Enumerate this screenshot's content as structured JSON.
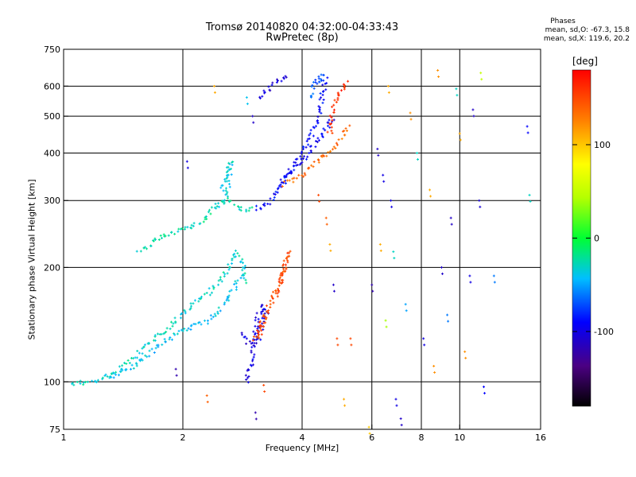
{
  "header": {
    "title_line1": "Tromsø 20140820 04:32:00-04:33:43",
    "title_line2": "RwPretec (8p)",
    "phases_title": "Phases",
    "phases_o": "mean, sd,O: -67.3, 15.8",
    "phases_x": "mean, sd,X: 119.6, 20.2"
  },
  "chart_data": {
    "type": "scatter",
    "xlabel": "Frequency [MHz]",
    "ylabel": "Stationary phase Virtual Height [km]",
    "xscale": "log",
    "yscale": "log",
    "xlim": [
      1,
      16
    ],
    "ylim": [
      75,
      750
    ],
    "xticks": [
      1,
      2,
      4,
      6,
      8,
      10,
      16
    ],
    "xtick_labels": [
      "1",
      "2",
      "4",
      "6",
      "8",
      "10",
      "16"
    ],
    "yticks": [
      75,
      100,
      200,
      300,
      400,
      500,
      600,
      750
    ],
    "ytick_labels": [
      "75",
      "100",
      "200",
      "300",
      "400",
      "500",
      "600",
      "750"
    ],
    "grid_x": [
      2,
      4,
      6,
      8,
      10
    ],
    "grid_y": [
      100,
      200,
      300,
      400,
      500,
      600
    ],
    "colorbar": {
      "unit": "[deg]",
      "range": [
        -180,
        180
      ],
      "ticks": [
        100,
        0,
        -100
      ],
      "tick_labels": [
        "100",
        "0",
        "-100"
      ]
    },
    "traces": [
      {
        "color_value": -30,
        "points": [
          [
            1.05,
            99
          ],
          [
            1.2,
            100
          ],
          [
            1.35,
            106
          ],
          [
            1.5,
            115
          ],
          [
            1.65,
            126
          ],
          [
            1.8,
            136
          ],
          [
            1.95,
            148
          ],
          [
            2.1,
            158
          ],
          [
            2.3,
            170
          ],
          [
            2.5,
            186
          ],
          [
            2.65,
            205
          ],
          [
            2.75,
            220
          ],
          [
            2.85,
            200
          ],
          [
            2.9,
            180
          ]
        ]
      },
      {
        "color_value": -40,
        "points": [
          [
            1.3,
            102
          ],
          [
            1.5,
            110
          ],
          [
            1.65,
            118
          ],
          [
            1.8,
            128
          ],
          [
            1.95,
            135
          ],
          [
            2.1,
            140
          ],
          [
            2.25,
            142
          ],
          [
            2.4,
            150
          ],
          [
            2.55,
            162
          ],
          [
            2.7,
            175
          ],
          [
            2.8,
            190
          ]
        ]
      },
      {
        "color_value": -25,
        "points": [
          [
            1.55,
            220
          ],
          [
            1.75,
            240
          ],
          [
            1.95,
            250
          ],
          [
            2.1,
            255
          ],
          [
            2.25,
            265
          ],
          [
            2.35,
            280
          ],
          [
            2.45,
            295
          ],
          [
            2.6,
            305
          ],
          [
            2.75,
            290
          ],
          [
            2.9,
            280
          ],
          [
            3.0,
            285
          ]
        ]
      },
      {
        "color_value": -35,
        "points": [
          [
            2.5,
            290
          ],
          [
            2.55,
            310
          ],
          [
            2.6,
            330
          ],
          [
            2.62,
            350
          ],
          [
            2.65,
            380
          ],
          [
            2.6,
            360
          ],
          [
            2.55,
            340
          ],
          [
            2.5,
            320
          ]
        ]
      },
      {
        "color_value": -100,
        "points": [
          [
            2.9,
            100
          ],
          [
            3.0,
            115
          ],
          [
            3.05,
            135
          ],
          [
            3.1,
            150
          ],
          [
            3.2,
            160
          ],
          [
            3.25,
            150
          ],
          [
            3.1,
            130
          ],
          [
            2.95,
            125
          ],
          [
            2.8,
            135
          ]
        ]
      },
      {
        "color_value": -90,
        "points": [
          [
            3.05,
            285
          ],
          [
            3.2,
            290
          ],
          [
            3.35,
            300
          ],
          [
            3.5,
            320
          ],
          [
            3.65,
            345
          ],
          [
            3.8,
            370
          ],
          [
            3.95,
            395
          ],
          [
            4.1,
            420
          ],
          [
            4.25,
            450
          ],
          [
            4.35,
            480
          ],
          [
            4.45,
            520
          ],
          [
            4.5,
            560
          ],
          [
            4.55,
            610
          ],
          [
            4.6,
            640
          ]
        ]
      },
      {
        "color_value": -95,
        "points": [
          [
            3.5,
            330
          ],
          [
            3.7,
            350
          ],
          [
            3.9,
            370
          ],
          [
            4.1,
            390
          ],
          [
            4.3,
            420
          ],
          [
            4.5,
            450
          ],
          [
            4.7,
            480
          ],
          [
            4.85,
            500
          ]
        ]
      },
      {
        "color_value": -105,
        "points": [
          [
            3.1,
            560
          ],
          [
            3.25,
            580
          ],
          [
            3.4,
            605
          ],
          [
            3.55,
            625
          ],
          [
            3.7,
            640
          ]
        ]
      },
      {
        "color_value": -70,
        "points": [
          [
            4.2,
            560
          ],
          [
            4.3,
            600
          ],
          [
            4.4,
            630
          ],
          [
            4.5,
            640
          ],
          [
            4.45,
            600
          ]
        ]
      },
      {
        "color_value": 135,
        "points": [
          [
            3.6,
            330
          ],
          [
            3.8,
            340
          ],
          [
            4.0,
            350
          ],
          [
            4.2,
            365
          ],
          [
            4.4,
            380
          ],
          [
            4.6,
            395
          ],
          [
            4.8,
            410
          ],
          [
            5.0,
            430
          ],
          [
            5.15,
            455
          ],
          [
            5.25,
            470
          ]
        ]
      },
      {
        "color_value": 150,
        "points": [
          [
            3.4,
            170
          ],
          [
            3.5,
            180
          ],
          [
            3.6,
            195
          ],
          [
            3.65,
            210
          ],
          [
            3.7,
            220
          ],
          [
            3.6,
            200
          ],
          [
            3.5,
            175
          ],
          [
            3.3,
            160
          ],
          [
            3.15,
            135
          ],
          [
            3.05,
            130
          ],
          [
            3.2,
            150
          ]
        ]
      },
      {
        "color_value": 160,
        "points": [
          [
            4.7,
            450
          ],
          [
            4.8,
            520
          ],
          [
            4.9,
            560
          ],
          [
            5.0,
            580
          ],
          [
            5.1,
            600
          ],
          [
            5.2,
            620
          ]
        ]
      }
    ],
    "scattered_points": [
      {
        "f": 1.92,
        "h": 108,
        "deg": -120
      },
      {
        "f": 2.05,
        "h": 380,
        "deg": -100
      },
      {
        "f": 2.3,
        "h": 92,
        "deg": 140
      },
      {
        "f": 2.4,
        "h": 600,
        "deg": 110
      },
      {
        "f": 2.9,
        "h": 560,
        "deg": -40
      },
      {
        "f": 3.0,
        "h": 500,
        "deg": -110
      },
      {
        "f": 3.05,
        "h": 83,
        "deg": -120
      },
      {
        "f": 3.2,
        "h": 98,
        "deg": 150
      },
      {
        "f": 4.4,
        "h": 310,
        "deg": 150
      },
      {
        "f": 4.6,
        "h": 270,
        "deg": 140
      },
      {
        "f": 4.7,
        "h": 230,
        "deg": 110
      },
      {
        "f": 4.8,
        "h": 180,
        "deg": -110
      },
      {
        "f": 4.9,
        "h": 130,
        "deg": 150
      },
      {
        "f": 5.1,
        "h": 90,
        "deg": 110
      },
      {
        "f": 5.3,
        "h": 130,
        "deg": 150
      },
      {
        "f": 5.9,
        "h": 76,
        "deg": 100
      },
      {
        "f": 6.0,
        "h": 180,
        "deg": -120
      },
      {
        "f": 6.2,
        "h": 410,
        "deg": -110
      },
      {
        "f": 6.3,
        "h": 230,
        "deg": 110
      },
      {
        "f": 6.4,
        "h": 350,
        "deg": -100
      },
      {
        "f": 6.5,
        "h": 145,
        "deg": 40
      },
      {
        "f": 6.6,
        "h": 600,
        "deg": 110
      },
      {
        "f": 6.7,
        "h": 300,
        "deg": -100
      },
      {
        "f": 6.8,
        "h": 220,
        "deg": -30
      },
      {
        "f": 6.9,
        "h": 90,
        "deg": -100
      },
      {
        "f": 7.1,
        "h": 80,
        "deg": -110
      },
      {
        "f": 7.3,
        "h": 160,
        "deg": -50
      },
      {
        "f": 7.5,
        "h": 510,
        "deg": 120
      },
      {
        "f": 7.8,
        "h": 400,
        "deg": -30
      },
      {
        "f": 8.1,
        "h": 130,
        "deg": -100
      },
      {
        "f": 8.4,
        "h": 320,
        "deg": 110
      },
      {
        "f": 8.6,
        "h": 110,
        "deg": 120
      },
      {
        "f": 8.8,
        "h": 660,
        "deg": 120
      },
      {
        "f": 9.0,
        "h": 200,
        "deg": -110
      },
      {
        "f": 9.3,
        "h": 150,
        "deg": -60
      },
      {
        "f": 9.5,
        "h": 270,
        "deg": -110
      },
      {
        "f": 9.8,
        "h": 590,
        "deg": -30
      },
      {
        "f": 10.0,
        "h": 450,
        "deg": 110
      },
      {
        "f": 10.3,
        "h": 120,
        "deg": 120
      },
      {
        "f": 10.6,
        "h": 190,
        "deg": -100
      },
      {
        "f": 10.8,
        "h": 520,
        "deg": -110
      },
      {
        "f": 11.2,
        "h": 300,
        "deg": -105
      },
      {
        "f": 11.3,
        "h": 650,
        "deg": 50
      },
      {
        "f": 11.5,
        "h": 97,
        "deg": -90
      },
      {
        "f": 12.2,
        "h": 190,
        "deg": -60
      },
      {
        "f": 14.8,
        "h": 470,
        "deg": -90
      },
      {
        "f": 15.0,
        "h": 310,
        "deg": -30
      }
    ]
  }
}
